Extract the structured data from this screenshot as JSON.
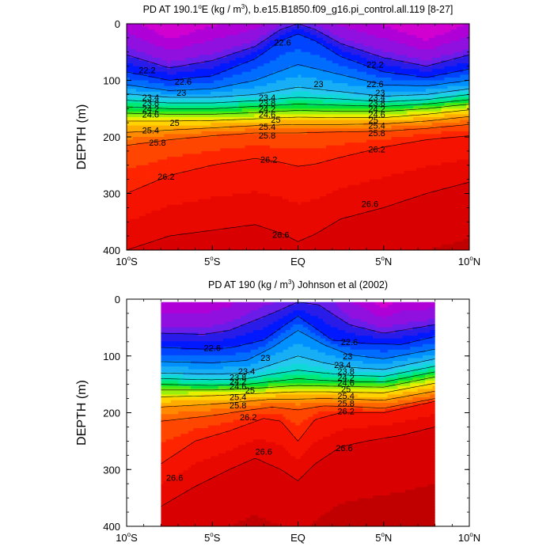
{
  "chart_data": [
    {
      "type": "heatmap",
      "title_parts": [
        "PD AT 190.1",
        "o",
        "E (kg / m",
        "3",
        "), b.e15.B1850.f09_g16.pi_control.all.119 [8-27]"
      ],
      "xlabel": "",
      "ylabel": "DEPTH (m)",
      "xlim": [
        -10,
        10
      ],
      "ylim": [
        400,
        0
      ],
      "x_ticks": [
        -10,
        -5,
        0,
        5,
        10
      ],
      "x_tick_labels": [
        [
          "10",
          "o",
          "S"
        ],
        [
          "5",
          "o",
          "S"
        ],
        [
          "EQ",
          "",
          ""
        ],
        [
          "5",
          "o",
          "N"
        ],
        [
          "10",
          "o",
          "N"
        ]
      ],
      "y_ticks": [
        0,
        100,
        200,
        300,
        400
      ],
      "y_tick_labels": [
        "0",
        "100",
        "200",
        "300",
        "400"
      ],
      "data_xlim": [
        -10,
        10
      ],
      "data_ylim": [
        0,
        400
      ],
      "isopycnals": [
        {
          "level": 22.2,
          "x": [
            -10,
            -7.5,
            -5,
            -2.5,
            -1,
            0,
            1,
            2.5,
            5,
            7.5,
            10
          ],
          "depth": [
            55,
            78,
            65,
            40,
            10,
            0,
            10,
            35,
            60,
            75,
            55
          ]
        },
        {
          "level": 22.6,
          "x": [
            -10,
            -7.5,
            -5,
            -2.5,
            -1,
            0,
            1,
            2.5,
            5,
            7.5,
            10
          ],
          "depth": [
            85,
            100,
            92,
            62,
            30,
            18,
            30,
            58,
            85,
            95,
            80
          ]
        },
        {
          "level": 23.0,
          "x": [
            -10,
            -7.5,
            -5,
            -2.5,
            0,
            2.5,
            5,
            7.5,
            10
          ],
          "depth": [
            108,
            118,
            115,
            100,
            72,
            90,
            108,
            110,
            100
          ]
        },
        {
          "level": 23.4,
          "x": [
            -10,
            -7.5,
            -5,
            -2.5,
            0,
            2.5,
            5,
            7.5,
            10
          ],
          "depth": [
            124,
            130,
            130,
            125,
            112,
            120,
            128,
            125,
            115
          ]
        },
        {
          "level": 23.8,
          "x": [
            -10,
            -7.5,
            -5,
            -2.5,
            0,
            2.5,
            5,
            7.5,
            10
          ],
          "depth": [
            135,
            140,
            140,
            136,
            130,
            133,
            138,
            134,
            125
          ]
        },
        {
          "level": 24.2,
          "x": [
            -10,
            -7.5,
            -5,
            -2.5,
            0,
            2.5,
            5,
            7.5,
            10
          ],
          "depth": [
            147,
            150,
            150,
            146,
            142,
            144,
            146,
            142,
            134
          ]
        },
        {
          "level": 24.6,
          "x": [
            -10,
            -7.5,
            -5,
            -2.5,
            0,
            2.5,
            5,
            7.5,
            10
          ],
          "depth": [
            158,
            160,
            160,
            157,
            153,
            155,
            155,
            150,
            142
          ]
        },
        {
          "level": 25.0,
          "x": [
            -10,
            -7.5,
            -5,
            -2.5,
            0,
            2.5,
            5,
            7.5,
            10
          ],
          "depth": [
            172,
            172,
            171,
            168,
            165,
            166,
            166,
            160,
            152
          ]
        },
        {
          "level": 25.4,
          "x": [
            -10,
            -7.5,
            -5,
            -2.5,
            0,
            2.5,
            5,
            7.5,
            10
          ],
          "depth": [
            192,
            188,
            184,
            180,
            178,
            178,
            177,
            172,
            164
          ]
        },
        {
          "level": 25.8,
          "x": [
            -10,
            -7.5,
            -5,
            -2.5,
            0,
            2.5,
            5,
            7.5,
            10
          ],
          "depth": [
            215,
            205,
            198,
            193,
            193,
            191,
            190,
            185,
            178
          ]
        },
        {
          "level": 26.2,
          "x": [
            -10,
            -7.5,
            -5,
            -2.5,
            -1,
            0,
            1,
            2.5,
            5,
            7.5,
            10
          ],
          "depth": [
            300,
            268,
            250,
            238,
            245,
            252,
            248,
            236,
            218,
            205,
            198
          ]
        },
        {
          "level": 26.6,
          "x": [
            -10,
            -7.5,
            -5,
            -2.5,
            -1,
            0,
            1,
            2.5,
            5,
            7.5,
            10
          ],
          "depth": [
            400,
            375,
            365,
            355,
            370,
            385,
            372,
            345,
            325,
            300,
            280
          ]
        }
      ],
      "line_labels": [
        {
          "text": "22.6",
          "x": -0.9,
          "depth": 33
        },
        {
          "text": "22.2",
          "x": -8.8,
          "depth": 82
        },
        {
          "text": "22.2",
          "x": 4.5,
          "depth": 72
        },
        {
          "text": "22.6",
          "x": -6.7,
          "depth": 102
        },
        {
          "text": "22.6",
          "x": 4.5,
          "depth": 106
        },
        {
          "text": "23",
          "x": -6.8,
          "depth": 122
        },
        {
          "text": "23",
          "x": 1.2,
          "depth": 106
        },
        {
          "text": "23",
          "x": 4.8,
          "depth": 122
        },
        {
          "text": "23.4",
          "x": -8.6,
          "depth": 130
        },
        {
          "text": "23.4",
          "x": -1.8,
          "depth": 130
        },
        {
          "text": "23.4",
          "x": 4.6,
          "depth": 130
        },
        {
          "text": "23.8",
          "x": -8.6,
          "depth": 140
        },
        {
          "text": "23.8",
          "x": -1.8,
          "depth": 140
        },
        {
          "text": "23.8",
          "x": 4.6,
          "depth": 140
        },
        {
          "text": "24.2",
          "x": -8.6,
          "depth": 150
        },
        {
          "text": "24.2",
          "x": -1.8,
          "depth": 150
        },
        {
          "text": "24.2",
          "x": 4.6,
          "depth": 150
        },
        {
          "text": "24.6",
          "x": -8.6,
          "depth": 160
        },
        {
          "text": "24.6",
          "x": -1.8,
          "depth": 160
        },
        {
          "text": "24.6",
          "x": 4.6,
          "depth": 160
        },
        {
          "text": "25",
          "x": -7.2,
          "depth": 175
        },
        {
          "text": "25",
          "x": -1.3,
          "depth": 169
        },
        {
          "text": "25",
          "x": 4.4,
          "depth": 170
        },
        {
          "text": "25.4",
          "x": -8.6,
          "depth": 188
        },
        {
          "text": "25.4",
          "x": -1.8,
          "depth": 182
        },
        {
          "text": "25.4",
          "x": 4.6,
          "depth": 180
        },
        {
          "text": "25.8",
          "x": -8.2,
          "depth": 210
        },
        {
          "text": "25.8",
          "x": -1.8,
          "depth": 197
        },
        {
          "text": "25.8",
          "x": 4.6,
          "depth": 193
        },
        {
          "text": "26.2",
          "x": -7.7,
          "depth": 270
        },
        {
          "text": "26.2",
          "x": -1.7,
          "depth": 240
        },
        {
          "text": "26.2",
          "x": 4.6,
          "depth": 222
        },
        {
          "text": "26.6",
          "x": 4.2,
          "depth": 318
        },
        {
          "text": "26.6",
          "x": -1.0,
          "depth": 373
        }
      ]
    },
    {
      "type": "heatmap",
      "title_parts": [
        "PD AT 190 (kg / m",
        "3",
        ") Johnson et al (2002)"
      ],
      "xlabel": "",
      "ylabel": "DEPTH (m)",
      "xlim": [
        -10,
        10
      ],
      "ylim": [
        400,
        0
      ],
      "x_ticks": [
        -10,
        -5,
        0,
        5,
        10
      ],
      "x_tick_labels": [
        [
          "10",
          "o",
          "S"
        ],
        [
          "5",
          "o",
          "S"
        ],
        [
          "EQ",
          "",
          ""
        ],
        [
          "5",
          "o",
          "N"
        ],
        [
          "10",
          "o",
          "N"
        ]
      ],
      "y_ticks": [
        0,
        100,
        200,
        300,
        400
      ],
      "y_tick_labels": [
        "0",
        "100",
        "200",
        "300",
        "400"
      ],
      "data_xlim": [
        -8,
        8
      ],
      "data_ylim": [
        5,
        400
      ],
      "isopycnals": [
        {
          "level": 22.2,
          "x": [
            -8,
            -5.5,
            -4,
            -1.5,
            0,
            1.2,
            3,
            5,
            8
          ],
          "depth": [
            60,
            62,
            55,
            25,
            5,
            10,
            45,
            60,
            45
          ]
        },
        {
          "level": 22.6,
          "x": [
            -8,
            -5.5,
            -4,
            -2,
            -0.5,
            0,
            0.5,
            2,
            4,
            6,
            8
          ],
          "depth": [
            85,
            88,
            86,
            72,
            40,
            30,
            40,
            72,
            78,
            80,
            66
          ]
        },
        {
          "level": 23.0,
          "x": [
            -8,
            -5,
            -3,
            -1.5,
            0,
            1.5,
            3,
            5,
            8
          ],
          "depth": [
            110,
            112,
            108,
            85,
            55,
            80,
            98,
            105,
            88
          ]
        },
        {
          "level": 23.4,
          "x": [
            -8,
            -5,
            -3,
            -1.5,
            0,
            1.5,
            3,
            5,
            8
          ],
          "depth": [
            130,
            132,
            130,
            115,
            100,
            112,
            120,
            124,
            105
          ]
        },
        {
          "level": 23.8,
          "x": [
            -8,
            -5,
            -3,
            -1.5,
            0,
            1.5,
            3,
            5,
            8
          ],
          "depth": [
            140,
            142,
            140,
            132,
            125,
            130,
            134,
            136,
            118
          ]
        },
        {
          "level": 24.2,
          "x": [
            -8,
            -5,
            -3,
            -1.5,
            0,
            1.5,
            3,
            5,
            8
          ],
          "depth": [
            150,
            152,
            150,
            145,
            140,
            143,
            145,
            146,
            128
          ]
        },
        {
          "level": 24.6,
          "x": [
            -8,
            -5,
            -3,
            -1.5,
            0,
            1.5,
            3,
            5,
            8
          ],
          "depth": [
            160,
            160,
            158,
            155,
            152,
            153,
            154,
            155,
            137
          ]
        },
        {
          "level": 25.0,
          "x": [
            -8,
            -5,
            -3,
            -1.5,
            0,
            1.5,
            3,
            5,
            8
          ],
          "depth": [
            172,
            170,
            167,
            165,
            163,
            163,
            164,
            165,
            148
          ]
        },
        {
          "level": 25.4,
          "x": [
            -8,
            -5,
            -3,
            -1.5,
            0,
            1.5,
            3,
            5,
            8
          ],
          "depth": [
            190,
            185,
            180,
            176,
            176,
            175,
            176,
            178,
            162
          ]
        },
        {
          "level": 25.8,
          "x": [
            -8,
            -5,
            -3,
            -1.5,
            0,
            1.5,
            3,
            5,
            8
          ],
          "depth": [
            215,
            205,
            196,
            190,
            195,
            188,
            189,
            192,
            175
          ]
        },
        {
          "level": 26.2,
          "x": [
            -8,
            -6,
            -4,
            -2,
            -1,
            0,
            1,
            2.5,
            5,
            8
          ],
          "depth": [
            290,
            250,
            232,
            210,
            215,
            250,
            212,
            200,
            200,
            180
          ]
        },
        {
          "level": 26.6,
          "x": [
            -8,
            -6,
            -4,
            -2.5,
            -1,
            0,
            1,
            2.5,
            4,
            6,
            8
          ],
          "depth": [
            365,
            330,
            300,
            280,
            300,
            320,
            290,
            260,
            250,
            240,
            225
          ]
        }
      ],
      "line_labels": [
        {
          "text": "22.6",
          "x": -5.0,
          "depth": 86
        },
        {
          "text": "22.6",
          "x": 3.0,
          "depth": 75
        },
        {
          "text": "23",
          "x": -1.9,
          "depth": 103
        },
        {
          "text": "23",
          "x": 2.9,
          "depth": 100
        },
        {
          "text": "23.4",
          "x": -3.0,
          "depth": 127
        },
        {
          "text": "23.4",
          "x": 2.6,
          "depth": 116
        },
        {
          "text": "23.8",
          "x": -3.5,
          "depth": 137
        },
        {
          "text": "23.8",
          "x": 2.8,
          "depth": 127
        },
        {
          "text": "24.2",
          "x": -3.5,
          "depth": 145
        },
        {
          "text": "24.2",
          "x": 2.8,
          "depth": 138
        },
        {
          "text": "24.6",
          "x": -3.5,
          "depth": 153
        },
        {
          "text": "24.6",
          "x": 2.8,
          "depth": 147
        },
        {
          "text": "25",
          "x": -2.8,
          "depth": 160
        },
        {
          "text": "25",
          "x": 2.8,
          "depth": 158
        },
        {
          "text": "25.4",
          "x": -3.5,
          "depth": 172
        },
        {
          "text": "25.4",
          "x": 2.8,
          "depth": 170
        },
        {
          "text": "25.8",
          "x": -3.5,
          "depth": 187
        },
        {
          "text": "25.8",
          "x": 2.8,
          "depth": 183
        },
        {
          "text": "26.2",
          "x": -2.9,
          "depth": 208
        },
        {
          "text": "26.2",
          "x": 2.8,
          "depth": 197
        },
        {
          "text": "26.6",
          "x": -2.0,
          "depth": 268
        },
        {
          "text": "26.6",
          "x": 2.7,
          "depth": 262
        },
        {
          "text": "26.6",
          "x": -7.2,
          "depth": 314
        }
      ]
    }
  ],
  "colormap": [
    {
      "level": 20.8,
      "color": "#d100d1"
    },
    {
      "level": 21.2,
      "color": "#b000d8"
    },
    {
      "level": 21.6,
      "color": "#9010e0"
    },
    {
      "level": 22.0,
      "color": "#6a1ce8"
    },
    {
      "level": 22.2,
      "color": "#2a1ce8"
    },
    {
      "level": 22.4,
      "color": "#0019ff"
    },
    {
      "level": 22.6,
      "color": "#0044ff"
    },
    {
      "level": 22.8,
      "color": "#006dff"
    },
    {
      "level": 23.0,
      "color": "#0090ff"
    },
    {
      "level": 23.2,
      "color": "#18aef5"
    },
    {
      "level": 23.4,
      "color": "#25c8ee"
    },
    {
      "level": 23.6,
      "color": "#10d8d8"
    },
    {
      "level": 23.8,
      "color": "#00e3ad"
    },
    {
      "level": 24.0,
      "color": "#00e875"
    },
    {
      "level": 24.2,
      "color": "#00e13a"
    },
    {
      "level": 24.4,
      "color": "#48ea14"
    },
    {
      "level": 24.6,
      "color": "#9aef0c"
    },
    {
      "level": 24.8,
      "color": "#e8f000"
    },
    {
      "level": 25.0,
      "color": "#ffd200"
    },
    {
      "level": 25.2,
      "color": "#ffac00"
    },
    {
      "level": 25.4,
      "color": "#ff8a00"
    },
    {
      "level": 25.6,
      "color": "#ff6600"
    },
    {
      "level": 25.8,
      "color": "#ff4600"
    },
    {
      "level": 26.0,
      "color": "#ff2500"
    },
    {
      "level": 26.2,
      "color": "#f51200"
    },
    {
      "level": 26.4,
      "color": "#e80800"
    },
    {
      "level": 26.6,
      "color": "#d80000"
    },
    {
      "level": 27.0,
      "color": "#c00000"
    }
  ]
}
